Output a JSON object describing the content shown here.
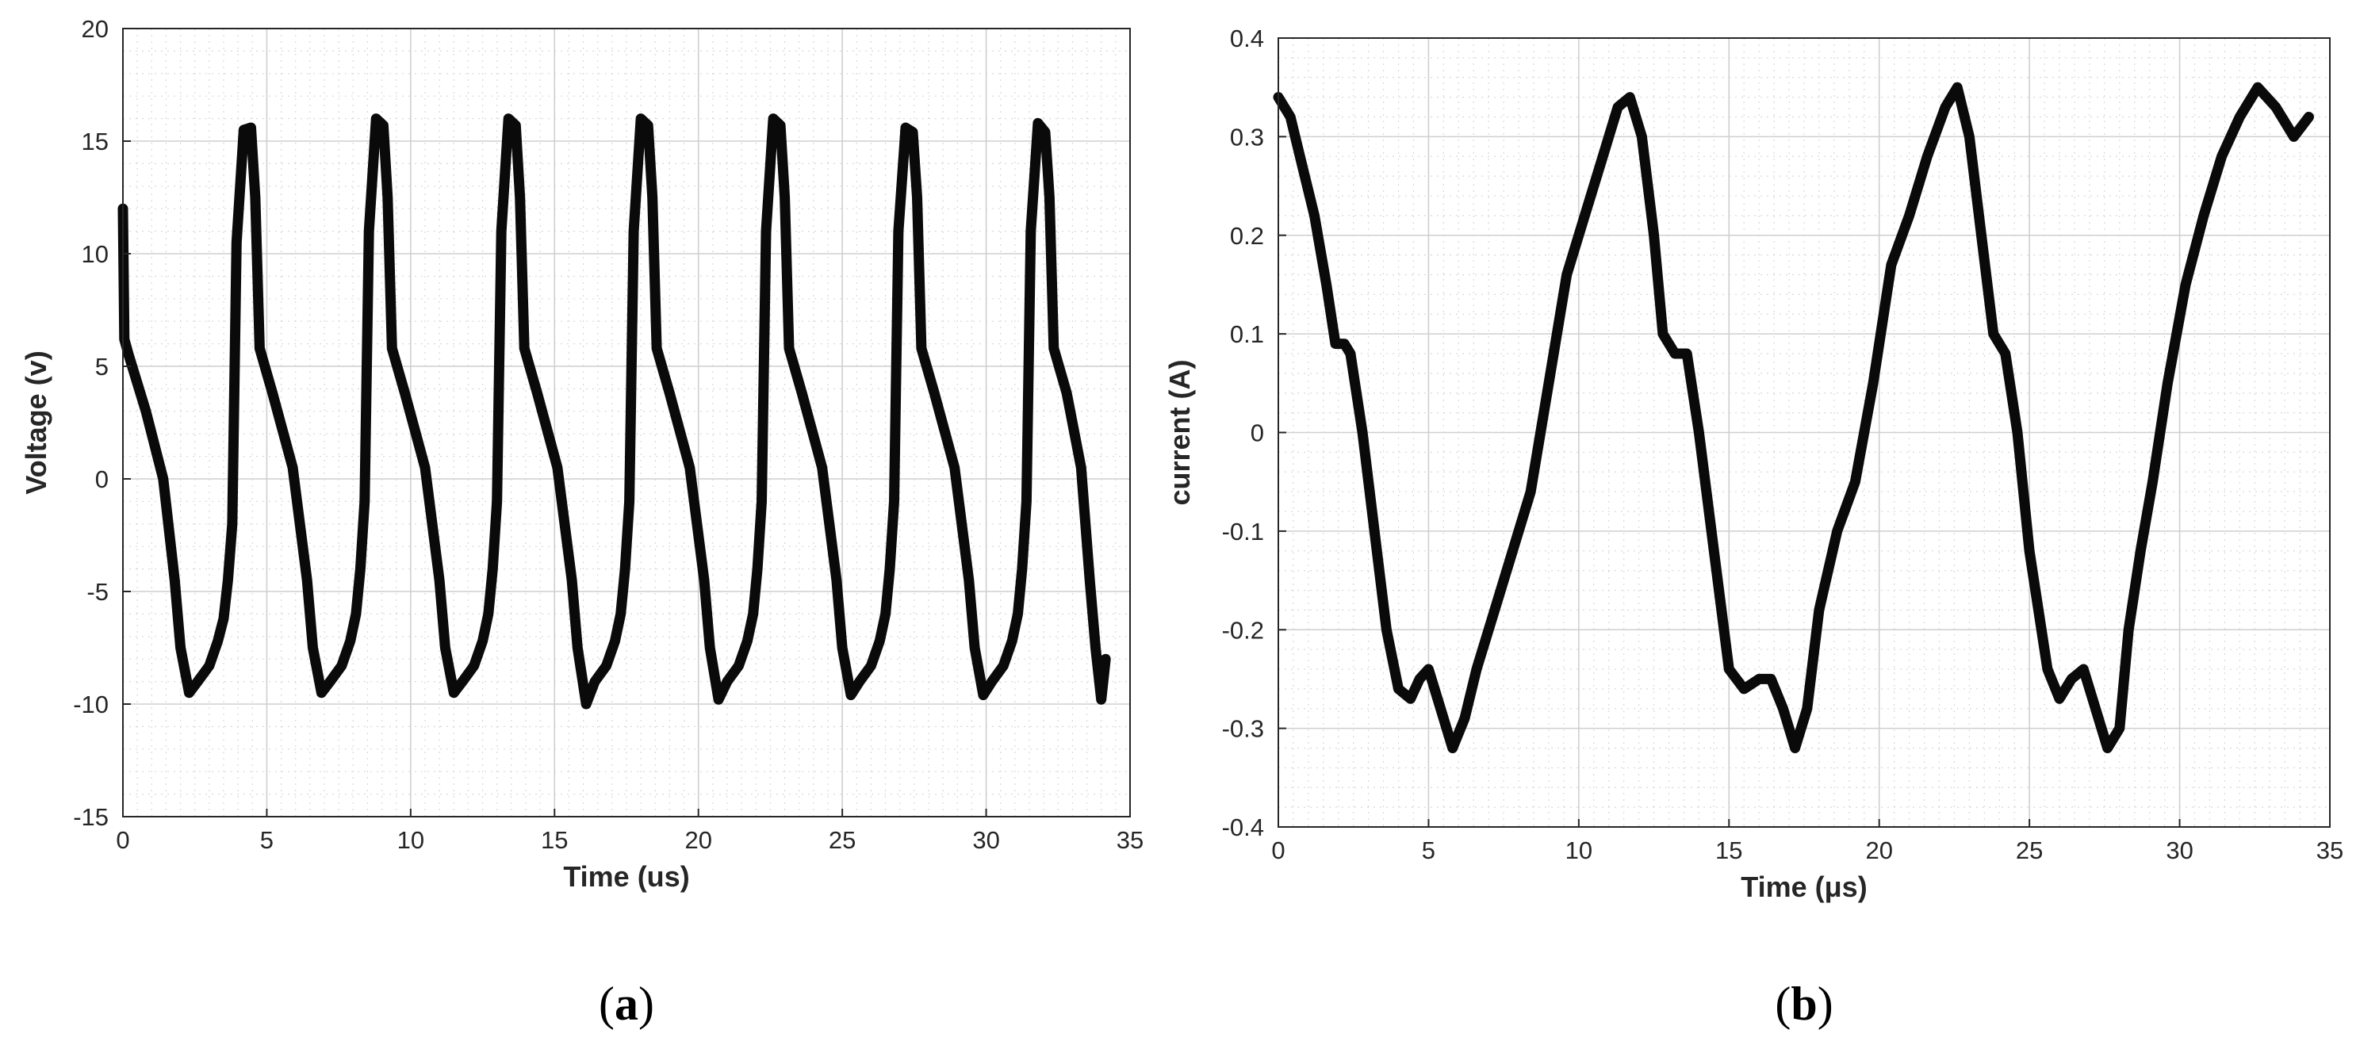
{
  "chart_data": [
    {
      "type": "line",
      "caption": "(a)",
      "caption_letter": "a",
      "xlabel": "Time (us)",
      "ylabel": "Voltage (v)",
      "xlim": [
        0,
        35
      ],
      "ylim": [
        -15,
        20
      ],
      "xticks": [
        "0",
        "5",
        "10",
        "15",
        "20",
        "25",
        "30",
        "35"
      ],
      "yticks": [
        "20",
        "15",
        "10",
        "5",
        "0",
        "-5",
        "-10",
        "-15"
      ],
      "grid": true,
      "line_color": "#0a0a0a",
      "series": [
        {
          "x": [
            0.0,
            0.05,
            0.2,
            0.8,
            1.4,
            1.8,
            2.0,
            2.3,
            2.6,
            3.0,
            3.3,
            3.5,
            3.65,
            3.8,
            3.95,
            4.2,
            4.45,
            4.6,
            4.75,
            5.2,
            5.9,
            6.4,
            6.6,
            6.9,
            7.2,
            7.6,
            7.9,
            8.1,
            8.25,
            8.4,
            8.55,
            8.8,
            9.05,
            9.2,
            9.35,
            9.8,
            10.5,
            11.0,
            11.2,
            11.5,
            11.8,
            12.2,
            12.5,
            12.7,
            12.85,
            13.0,
            13.15,
            13.4,
            13.65,
            13.8,
            13.95,
            14.4,
            15.1,
            15.6,
            15.8,
            16.1,
            16.4,
            16.8,
            17.1,
            17.3,
            17.45,
            17.6,
            17.75,
            18.0,
            18.25,
            18.4,
            18.55,
            19.0,
            19.7,
            20.2,
            20.4,
            20.7,
            21.0,
            21.4,
            21.7,
            21.9,
            22.05,
            22.2,
            22.35,
            22.6,
            22.85,
            23.0,
            23.15,
            23.6,
            24.3,
            24.8,
            25.0,
            25.3,
            25.6,
            26.0,
            26.3,
            26.5,
            26.65,
            26.8,
            26.95,
            27.2,
            27.45,
            27.6,
            27.75,
            28.2,
            28.9,
            29.4,
            29.6,
            29.9,
            30.2,
            30.6,
            30.9,
            31.1,
            31.25,
            31.4,
            31.55,
            31.8,
            32.05,
            32.2,
            32.35,
            32.8,
            33.3,
            33.6,
            33.8,
            34.0,
            34.15
          ],
          "values": [
            12,
            6.2,
            5.5,
            3.0,
            0,
            -4.5,
            -7.5,
            -9.5,
            -9.0,
            -8.3,
            -7.2,
            -6.2,
            -4.5,
            -2.0,
            10.5,
            15.5,
            15.6,
            12.5,
            5.8,
            3.8,
            0.5,
            -4.5,
            -7.5,
            -9.5,
            -9.0,
            -8.3,
            -7.2,
            -6.0,
            -4.0,
            -1.0,
            11,
            16,
            15.7,
            12.5,
            5.8,
            3.8,
            0.5,
            -4.5,
            -7.5,
            -9.5,
            -9.0,
            -8.3,
            -7.2,
            -6.0,
            -4.0,
            -1.0,
            11,
            16,
            15.7,
            12.5,
            5.8,
            3.8,
            0.5,
            -4.5,
            -7.5,
            -10.0,
            -9.0,
            -8.3,
            -7.2,
            -6.0,
            -4.0,
            -1.0,
            11,
            16,
            15.7,
            12.5,
            5.8,
            3.8,
            0.5,
            -4.5,
            -7.5,
            -9.8,
            -9.0,
            -8.3,
            -7.2,
            -6.0,
            -4.0,
            -1.0,
            11,
            16,
            15.7,
            12.5,
            5.8,
            3.8,
            0.5,
            -4.5,
            -7.5,
            -9.6,
            -9.0,
            -8.3,
            -7.2,
            -6.0,
            -4.0,
            -1.0,
            11,
            15.6,
            15.4,
            12.5,
            5.8,
            3.8,
            0.5,
            -4.5,
            -7.5,
            -9.6,
            -9.0,
            -8.3,
            -7.2,
            -6.0,
            -4.0,
            -1.0,
            11,
            15.8,
            15.4,
            12.5,
            5.8,
            3.8,
            0.5,
            -4.5,
            -7.5,
            -9.8,
            -8.0
          ]
        }
      ]
    },
    {
      "type": "line",
      "caption": "(b)",
      "caption_letter": "b",
      "xlabel": "Time (μs)",
      "ylabel": "current (A)",
      "xlim": [
        0,
        35
      ],
      "ylim": [
        -0.4,
        0.4
      ],
      "xticks": [
        "0",
        "5",
        "10",
        "15",
        "20",
        "25",
        "30",
        "35"
      ],
      "yticks": [
        "0.4",
        "0.3",
        "0.2",
        "0.1",
        "0",
        "-0.1",
        "-0.2",
        "-0.3",
        "-0.4"
      ],
      "grid": true,
      "line_color": "#0a0a0a",
      "series": [
        {
          "x": [
            0.0,
            0.4,
            0.8,
            1.2,
            1.6,
            1.9,
            2.2,
            2.4,
            2.8,
            3.2,
            3.6,
            4.0,
            4.4,
            4.7,
            5.0,
            5.4,
            5.8,
            6.2,
            6.6,
            7.2,
            7.8,
            8.4,
            9.0,
            9.6,
            10.2,
            10.8,
            11.3,
            11.7,
            12.1,
            12.5,
            12.8,
            13.2,
            13.6,
            14.0,
            14.5,
            15.0,
            15.5,
            16.0,
            16.4,
            16.8,
            17.2,
            17.6,
            18.0,
            18.6,
            19.2,
            19.8,
            20.4,
            21.0,
            21.6,
            22.2,
            22.6,
            23.0,
            23.4,
            23.8,
            24.2,
            24.6,
            25.0,
            25.6,
            26.0,
            26.4,
            26.8,
            27.2,
            27.6,
            28.0,
            28.3,
            28.7,
            29.1,
            29.6,
            30.2,
            30.8,
            31.4,
            32.0,
            32.6,
            33.2,
            33.8,
            34.3
          ],
          "values": [
            0.34,
            0.32,
            0.27,
            0.22,
            0.15,
            0.09,
            0.09,
            0.08,
            0.0,
            -0.1,
            -0.2,
            -0.26,
            -0.27,
            -0.25,
            -0.24,
            -0.28,
            -0.32,
            -0.29,
            -0.24,
            -0.18,
            -0.12,
            -0.06,
            0.05,
            0.16,
            0.22,
            0.28,
            0.33,
            0.34,
            0.3,
            0.2,
            0.1,
            0.08,
            0.08,
            0.0,
            -0.12,
            -0.24,
            -0.26,
            -0.25,
            -0.25,
            -0.28,
            -0.32,
            -0.28,
            -0.18,
            -0.1,
            -0.05,
            0.05,
            0.17,
            0.22,
            0.28,
            0.33,
            0.35,
            0.3,
            0.2,
            0.1,
            0.08,
            0.0,
            -0.12,
            -0.24,
            -0.27,
            -0.25,
            -0.24,
            -0.28,
            -0.32,
            -0.3,
            -0.2,
            -0.12,
            -0.05,
            0.05,
            0.15,
            0.22,
            0.28,
            0.32,
            0.35,
            0.33,
            0.3,
            0.32
          ]
        }
      ]
    }
  ]
}
